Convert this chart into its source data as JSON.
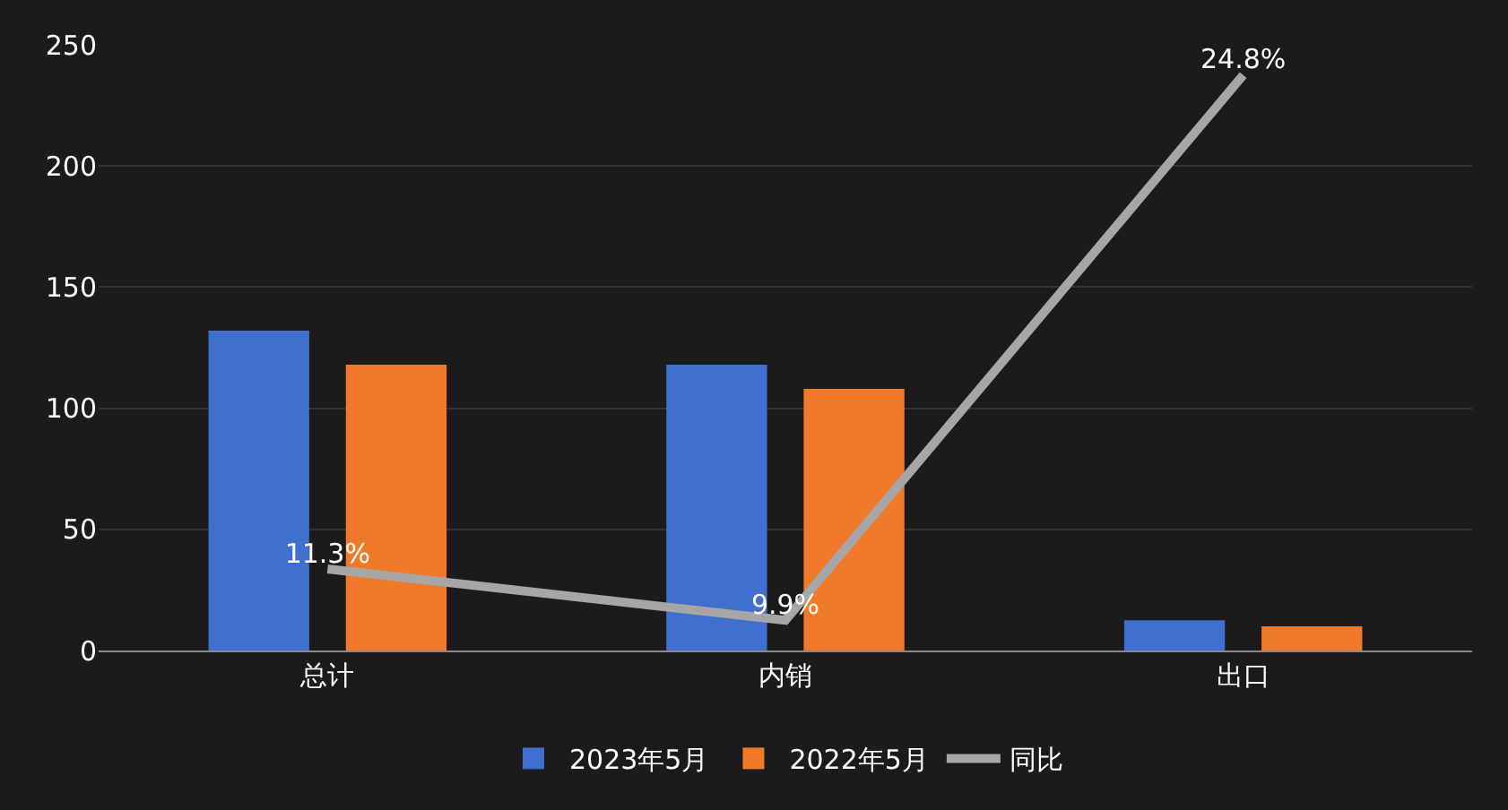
{
  "chart_data": {
    "type": "bar",
    "categories": [
      "总计",
      "内销",
      "出口"
    ],
    "series": [
      {
        "name": "2023年5月",
        "color": "#3f6fcf",
        "values": [
          132,
          118,
          12.5
        ]
      },
      {
        "name": "2022年5月",
        "color": "#f07a2a",
        "values": [
          118,
          108,
          10
        ]
      },
      {
        "name": "同比",
        "type": "line",
        "axis": "y2",
        "color": "#a6a6a6",
        "values": [
          11.3,
          9.9,
          24.8
        ],
        "value_labels": [
          "11.3%",
          "9.9%",
          "24.8%"
        ],
        "marker": "none",
        "line_style": "solid"
      }
    ],
    "ylim": [
      0,
      250
    ],
    "yticks": [
      0,
      50,
      100,
      150,
      200,
      250
    ],
    "tick_labels": [
      "x",
      "y"
    ],
    "grid": "y",
    "legend": "bottom"
  }
}
